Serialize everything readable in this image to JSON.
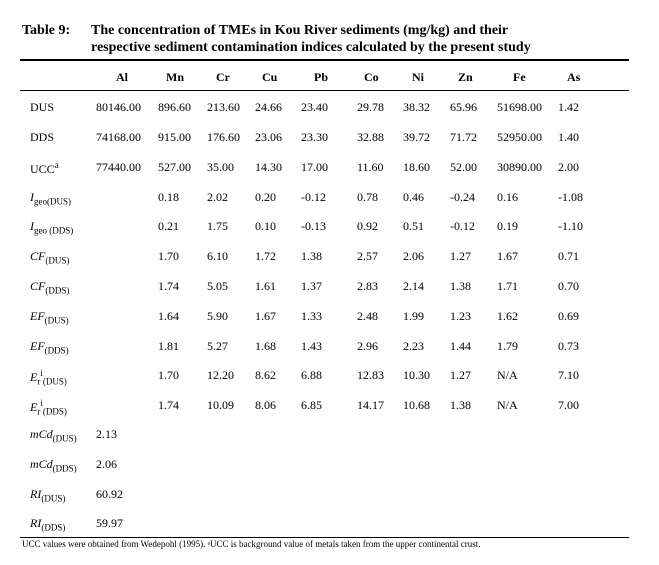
{
  "title": {
    "label": "Table 9:",
    "line1": "The concentration of TMEs in Kou River sediments (mg/kg) and their",
    "line2": "respective sediment contamination indices calculated by the present study"
  },
  "columns": [
    "Al",
    "Mn",
    "Cr",
    "Cu",
    "Pb",
    "Co",
    "Ni",
    "Zn",
    "Fe",
    "As"
  ],
  "rows": [
    {
      "label": "DUS",
      "values": [
        "80146.00",
        "896.60",
        "213.60",
        "24.66",
        "23.40",
        "29.78",
        "38.32",
        "65.96",
        "51698.00",
        "1.42"
      ]
    },
    {
      "label": "DDS",
      "values": [
        "74168.00",
        "915.00",
        "176.60",
        "23.06",
        "23.30",
        "32.88",
        "39.72",
        "71.72",
        "52950.00",
        "1.40"
      ]
    },
    {
      "label": "UCC",
      "sup": "a",
      "values": [
        "77440.00",
        "527.00",
        "35.00",
        "14.30",
        "17.00",
        "11.60",
        "18.60",
        "52.00",
        "30890.00",
        "2.00"
      ]
    },
    {
      "label": "I",
      "sub": "geo(DUS)",
      "values": [
        "",
        "0.18",
        "2.02",
        "0.20",
        "-0.12",
        "0.78",
        "0.46",
        "-0.24",
        "0.16",
        "-1.08"
      ]
    },
    {
      "label": "I",
      "sub": "geo (DDS)",
      "values": [
        "",
        "0.21",
        "1.75",
        "0.10",
        "-0.13",
        "0.92",
        "0.51",
        "-0.12",
        "0.19",
        "-1.10"
      ]
    },
    {
      "label": "CF",
      "sub": "(DUS)",
      "values": [
        "",
        "1.70",
        "6.10",
        "1.72",
        "1.38",
        "2.57",
        "2.06",
        "1.27",
        "1.67",
        "0.71"
      ]
    },
    {
      "label": "CF",
      "sub": "(DDS)",
      "values": [
        "",
        "1.74",
        "5.05",
        "1.61",
        "1.37",
        "2.83",
        "2.14",
        "1.38",
        "1.71",
        "0.70"
      ]
    },
    {
      "label": "EF",
      "sub": "(DUS)",
      "values": [
        "",
        "1.64",
        "5.90",
        "1.67",
        "1.33",
        "2.48",
        "1.99",
        "1.23",
        "1.62",
        "0.69"
      ]
    },
    {
      "label": "EF",
      "sub": "(DDS)",
      "values": [
        "",
        "1.81",
        "5.27",
        "1.68",
        "1.43",
        "2.96",
        "2.23",
        "1.44",
        "1.79",
        "0.73"
      ]
    },
    {
      "label": "E",
      "sub": "r",
      "sup": "i",
      "sub2": "(DUS)",
      "values": [
        "",
        "1.70",
        "12.20",
        "8.62",
        "6.88",
        "12.83",
        "10.30",
        "1.27",
        "N/A",
        "7.10"
      ]
    },
    {
      "label": "E",
      "sub": "r",
      "sup": "i",
      "sub2": "(DDS)",
      "values": [
        "",
        "1.74",
        "10.09",
        "8.06",
        "6.85",
        "14.17",
        "10.68",
        "1.38",
        "N/A",
        "7.00"
      ]
    },
    {
      "label": "mCd",
      "sub": "(DUS)",
      "values": [
        "2.13",
        "",
        "",
        "",
        "",
        "",
        "",
        "",
        "",
        ""
      ]
    },
    {
      "label": "mCd",
      "sub": "(DDS)",
      "values": [
        "2.06",
        "",
        "",
        "",
        "",
        "",
        "",
        "",
        "",
        ""
      ]
    },
    {
      "label": "RI",
      "sub": "(DUS)",
      "values": [
        "60.92",
        "",
        "",
        "",
        "",
        "",
        "",
        "",
        "",
        ""
      ]
    },
    {
      "label": "RI",
      "sub": "(DDS)",
      "values": [
        "59.97",
        "",
        "",
        "",
        "",
        "",
        "",
        "",
        "",
        ""
      ]
    }
  ],
  "footnote": "UCC values were obtained from Wedepohl (1995). ᵃUCC is background value of metals taken from the upper continental crust."
}
